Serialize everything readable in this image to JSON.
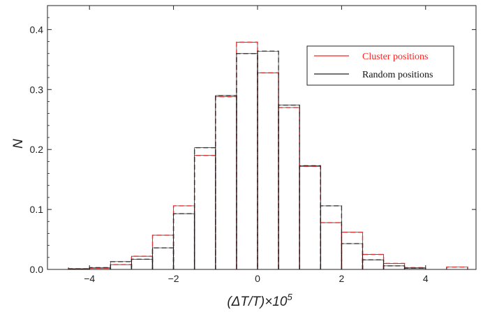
{
  "chart_data": {
    "type": "histogram",
    "xlabel": "(ΔT/T)×10",
    "xlabel_exponent": "5",
    "ylabel": "N",
    "xlim": [
      -5,
      5.2
    ],
    "ylim": [
      0,
      0.44
    ],
    "xticks": [
      -4,
      -2,
      0,
      2,
      4
    ],
    "yticks": [
      0.0,
      0.1,
      0.2,
      0.3,
      0.4
    ],
    "ytick_labels": [
      "0.0",
      "0.1",
      "0.2",
      "0.3",
      "0.4"
    ],
    "bin_width": 0.5,
    "legend_position": "top-right",
    "series": [
      {
        "name": "Cluster positions",
        "color": "#ff2020",
        "bins": [
          {
            "x0": -4.5,
            "value": 0.001
          },
          {
            "x0": -4.0,
            "value": 0.002
          },
          {
            "x0": -3.5,
            "value": 0.008
          },
          {
            "x0": -3.0,
            "value": 0.022
          },
          {
            "x0": -2.5,
            "value": 0.057
          },
          {
            "x0": -2.0,
            "value": 0.106
          },
          {
            "x0": -1.5,
            "value": 0.19
          },
          {
            "x0": -1.0,
            "value": 0.288
          },
          {
            "x0": -0.5,
            "value": 0.379
          },
          {
            "x0": 0.0,
            "value": 0.328
          },
          {
            "x0": 0.5,
            "value": 0.27
          },
          {
            "x0": 1.0,
            "value": 0.172
          },
          {
            "x0": 1.5,
            "value": 0.078
          },
          {
            "x0": 2.0,
            "value": 0.062
          },
          {
            "x0": 2.5,
            "value": 0.025
          },
          {
            "x0": 3.0,
            "value": 0.01
          },
          {
            "x0": 3.5,
            "value": 0.003
          },
          {
            "x0": 4.5,
            "value": 0.004
          }
        ]
      },
      {
        "name": "Random positions",
        "color": "#222222",
        "bins": [
          {
            "x0": -4.5,
            "value": 0.001
          },
          {
            "x0": -4.0,
            "value": 0.003
          },
          {
            "x0": -3.5,
            "value": 0.013
          },
          {
            "x0": -3.0,
            "value": 0.017
          },
          {
            "x0": -2.5,
            "value": 0.036
          },
          {
            "x0": -2.0,
            "value": 0.093
          },
          {
            "x0": -1.5,
            "value": 0.203
          },
          {
            "x0": -1.0,
            "value": 0.29
          },
          {
            "x0": -0.5,
            "value": 0.36
          },
          {
            "x0": 0.0,
            "value": 0.364
          },
          {
            "x0": 0.5,
            "value": 0.274
          },
          {
            "x0": 1.0,
            "value": 0.173
          },
          {
            "x0": 1.5,
            "value": 0.106
          },
          {
            "x0": 2.0,
            "value": 0.043
          },
          {
            "x0": 2.5,
            "value": 0.016
          },
          {
            "x0": 3.0,
            "value": 0.006
          },
          {
            "x0": 3.5,
            "value": 0.002
          }
        ]
      }
    ]
  }
}
